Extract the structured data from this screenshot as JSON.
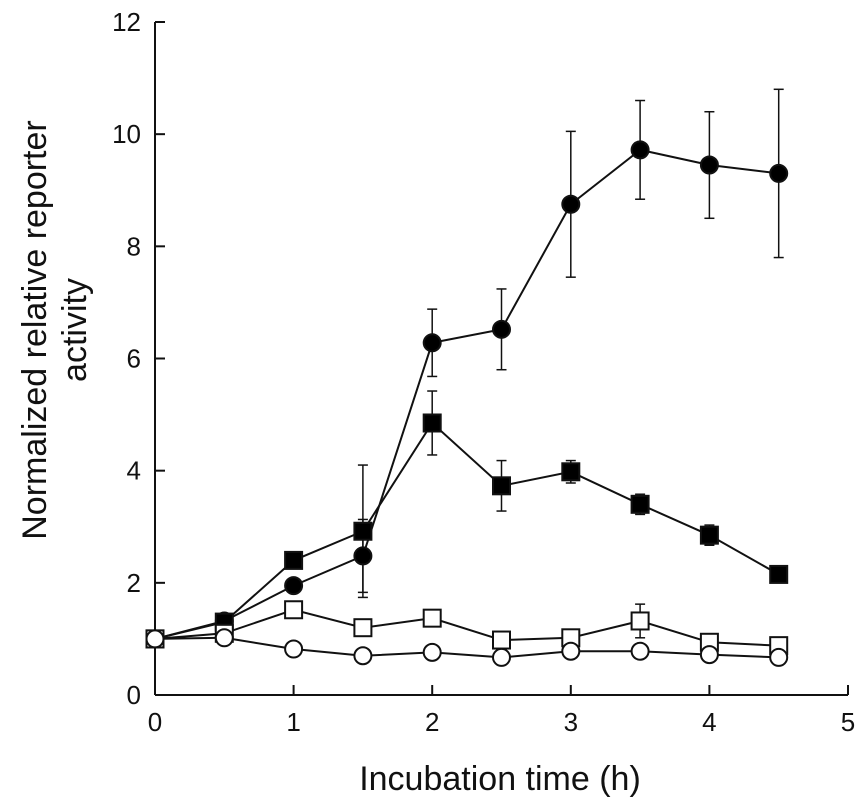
{
  "chart_data": {
    "type": "line",
    "title": "",
    "xlabel": "Incubation time (h)",
    "ylabel": "Normalized relative reporter activity",
    "ylabel_lines": [
      "Normalized relative reporter",
      "activity"
    ],
    "xlim": [
      0,
      5
    ],
    "ylim": [
      0,
      12
    ],
    "xticks": [
      0,
      1,
      2,
      3,
      4,
      5
    ],
    "yticks": [
      0,
      2,
      4,
      6,
      8,
      10,
      12
    ],
    "grid": false,
    "series": [
      {
        "name": "filled-circle",
        "marker": "circle",
        "fill": "#000000",
        "x": [
          0,
          0.5,
          1,
          1.5,
          2,
          2.5,
          3,
          3.5,
          4,
          4.5
        ],
        "y": [
          1.0,
          1.32,
          1.95,
          2.48,
          6.28,
          6.52,
          8.75,
          9.72,
          9.45,
          9.3
        ],
        "err": [
          0,
          0.05,
          0.1,
          0.65,
          0.6,
          0.72,
          1.3,
          0.88,
          0.95,
          1.5
        ]
      },
      {
        "name": "filled-square",
        "marker": "square",
        "fill": "#000000",
        "x": [
          0,
          0.5,
          1,
          1.5,
          2,
          2.5,
          3,
          3.5,
          4,
          4.5
        ],
        "y": [
          1.0,
          1.3,
          2.4,
          2.92,
          4.85,
          3.73,
          3.98,
          3.4,
          2.85,
          2.15
        ],
        "err": [
          0,
          0.05,
          0.1,
          1.18,
          0.57,
          0.45,
          0.2,
          0.18,
          0.18,
          0
        ]
      },
      {
        "name": "open-square",
        "marker": "square",
        "fill": "#ffffff",
        "x": [
          0,
          0.5,
          1,
          1.5,
          2,
          2.5,
          3,
          3.5,
          4,
          4.5
        ],
        "y": [
          1.0,
          1.1,
          1.52,
          1.2,
          1.37,
          0.98,
          1.02,
          1.32,
          0.94,
          0.88
        ],
        "err": [
          0,
          0.05,
          0.1,
          0.05,
          0.05,
          0.05,
          0.05,
          0.3,
          0.05,
          0.05
        ]
      },
      {
        "name": "open-circle",
        "marker": "circle",
        "fill": "#ffffff",
        "x": [
          0,
          0.5,
          1,
          1.5,
          2,
          2.5,
          3,
          3.5,
          4,
          4.5
        ],
        "y": [
          1.0,
          1.02,
          0.82,
          0.7,
          0.76,
          0.67,
          0.78,
          0.78,
          0.72,
          0.67
        ],
        "err": [
          0,
          0.03,
          0.05,
          0.04,
          0.04,
          0.04,
          0.04,
          0.04,
          0.04,
          0.04
        ]
      }
    ]
  }
}
